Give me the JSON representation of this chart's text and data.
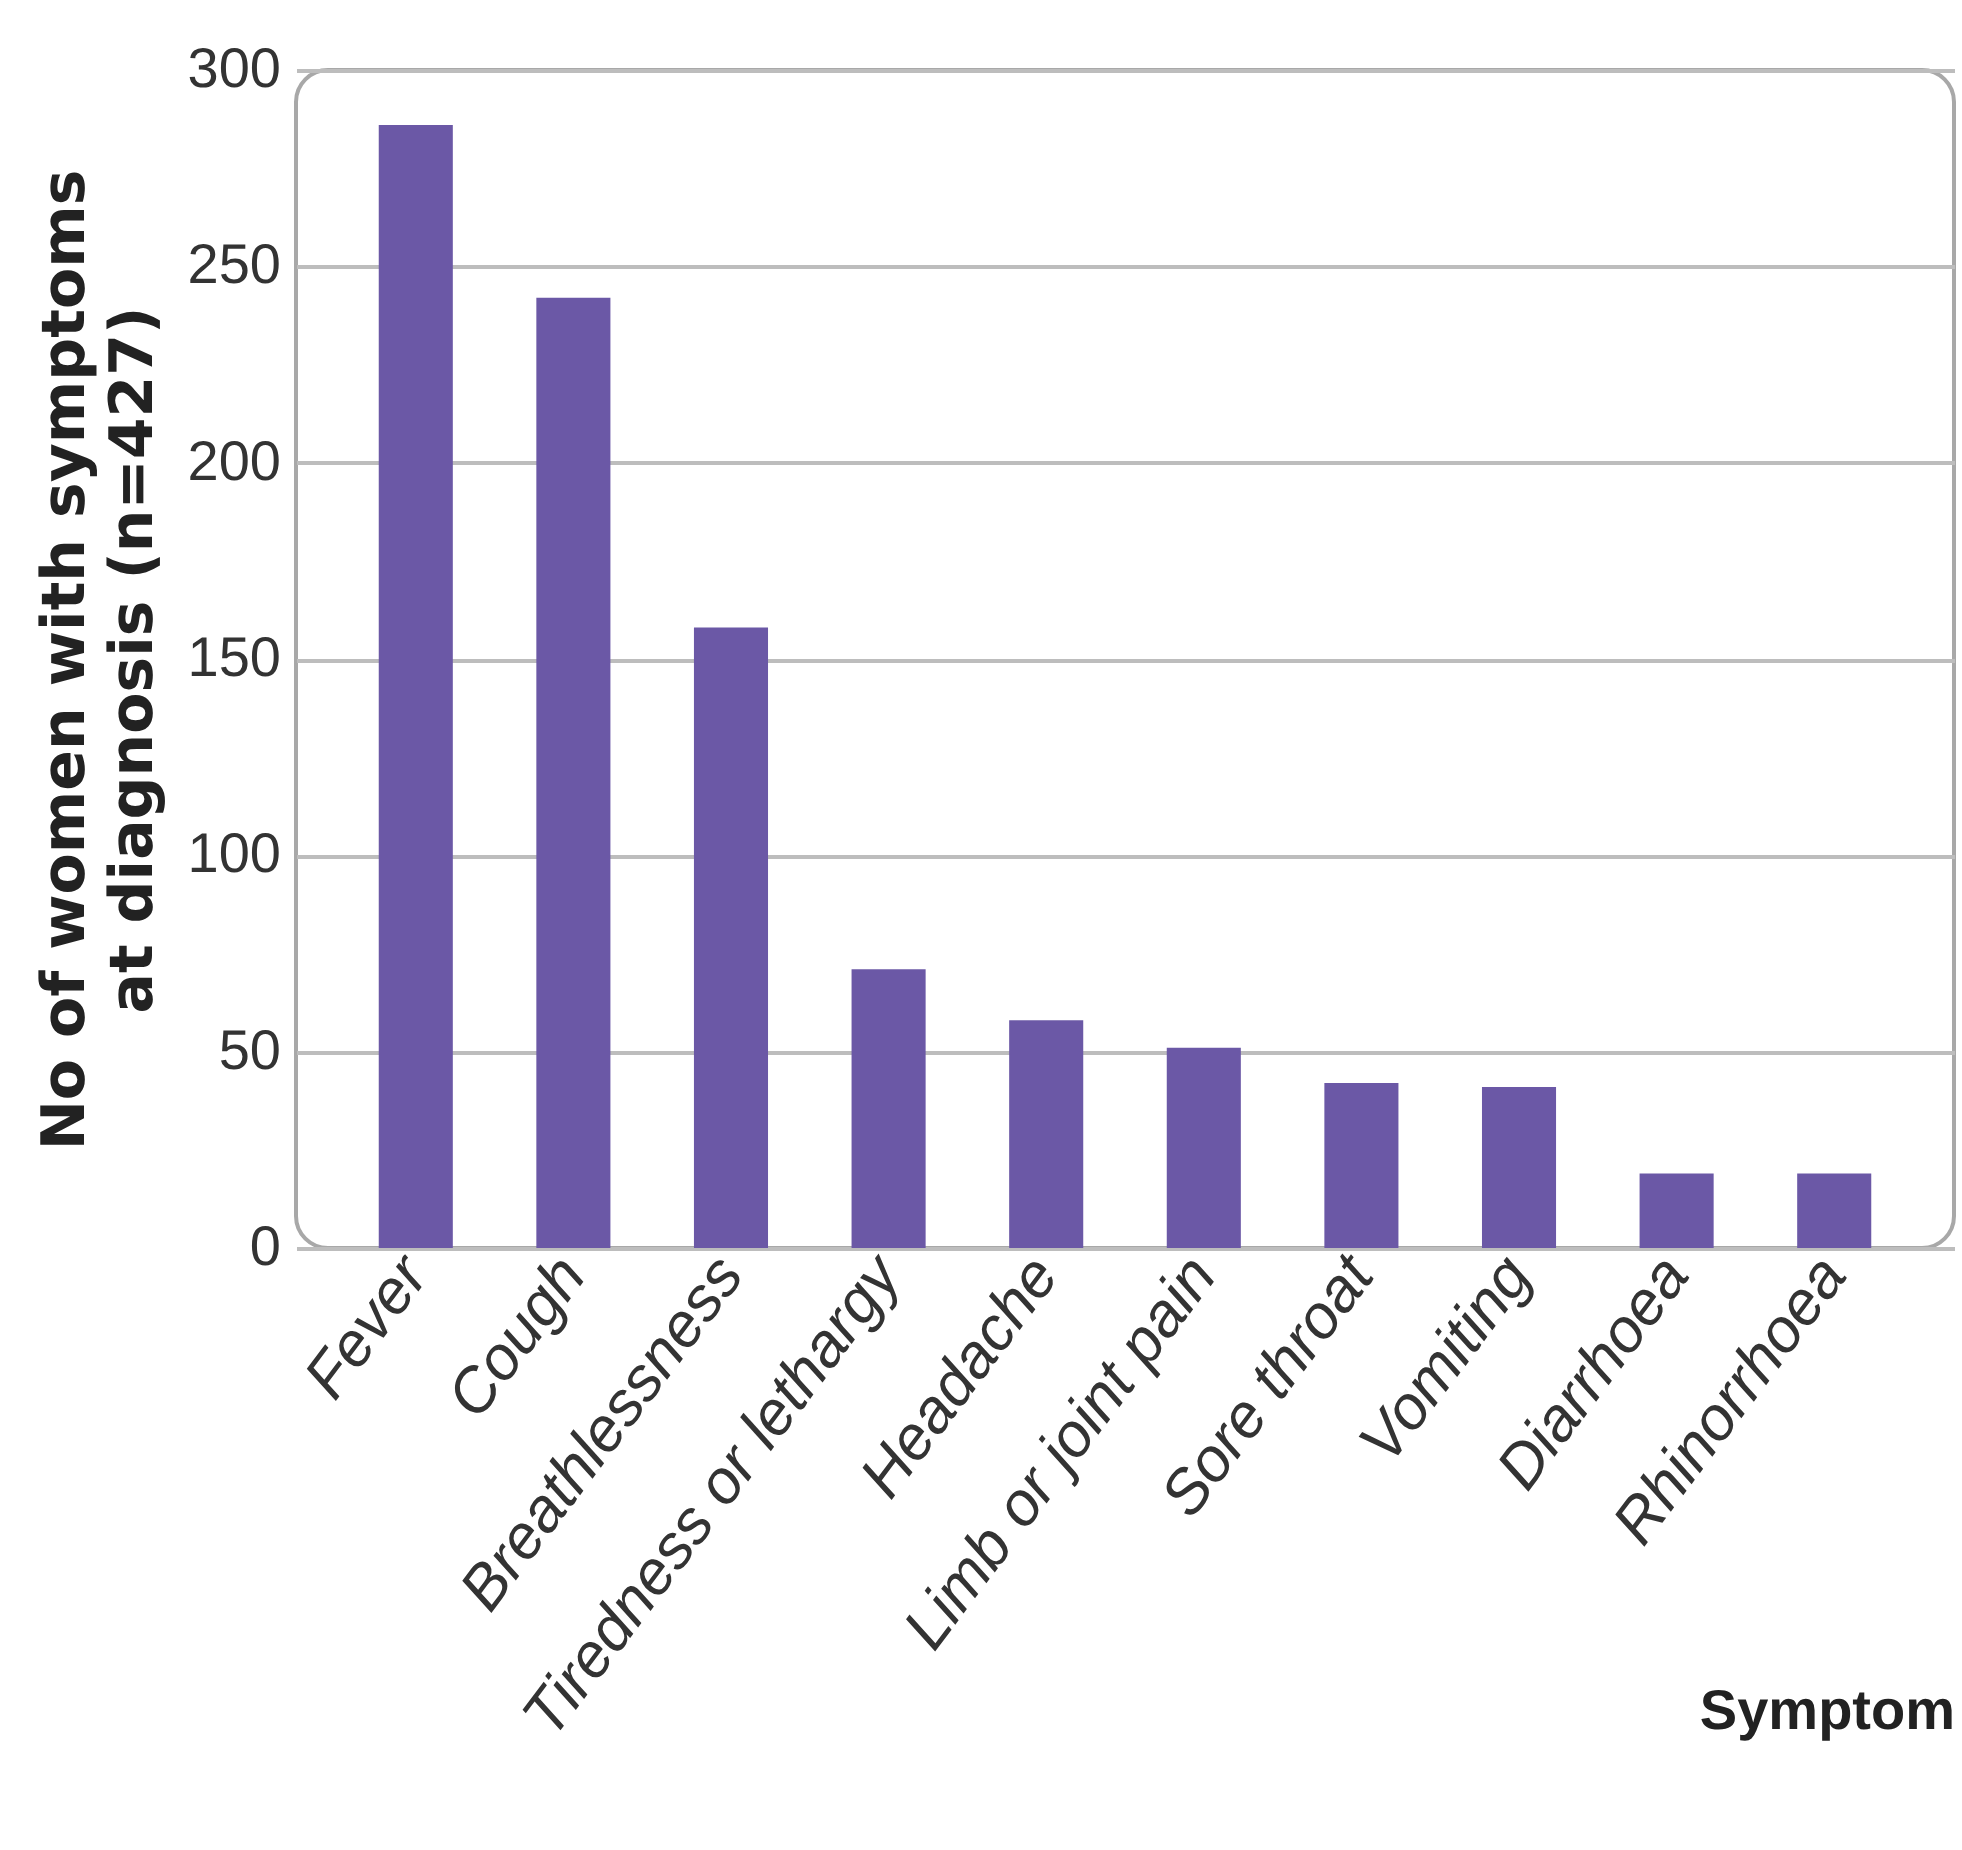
{
  "chart_data": {
    "type": "bar",
    "xlabel": "Symptom",
    "ylabel": "No of women with symptoms at diagnosis (n=427)",
    "categories": [
      "Fever",
      "Cough",
      "Breathlessness",
      "Tiredness or lethargy",
      "Headache",
      "Limb or joint pain",
      "Sore throat",
      "Vomiting",
      "Diarrhoea",
      "Rhinorrhoea"
    ],
    "values": [
      286,
      242,
      158,
      71,
      58,
      51,
      42,
      41,
      19,
      19
    ],
    "color": "#6b58a6",
    "ylim": [
      0,
      300
    ],
    "yticks": [
      0,
      50,
      100,
      150,
      200,
      250,
      300
    ],
    "grid": true
  }
}
